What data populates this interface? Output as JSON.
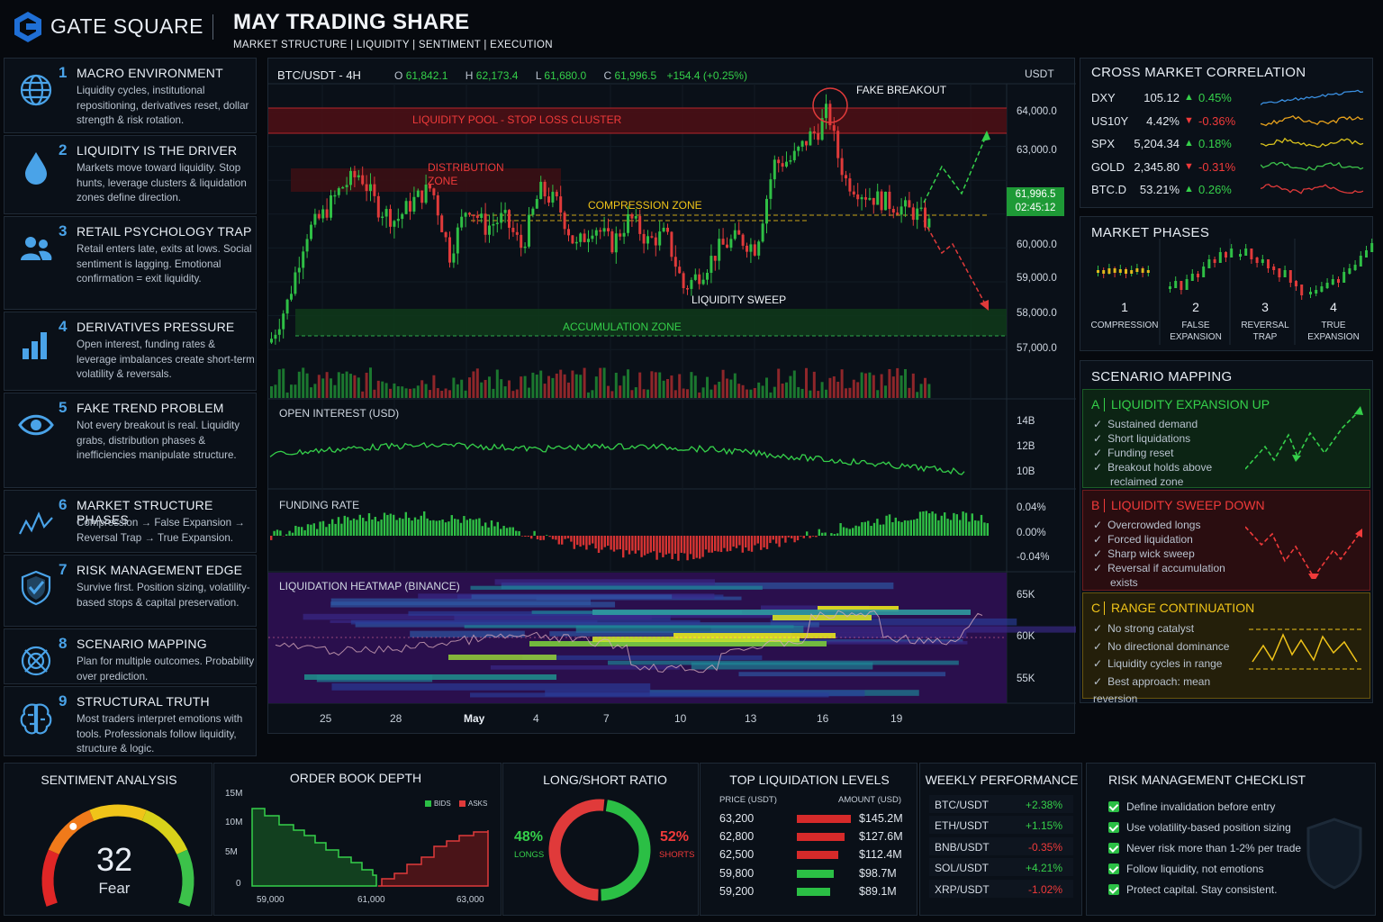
{
  "brand": {
    "name": "GATE SQUARE",
    "title": "MAY TRADING SHARE",
    "tags": "MARKET STRUCTURE | LIQUIDITY | SENTIMENT | EXECUTION"
  },
  "topics": [
    {
      "num": "1",
      "title": "MACRO ENVIRONMENT",
      "desc": "Liquidity cycles, institutional repositioning, derivatives reset, dollar strength & risk rotation.",
      "icon": "globe-icon"
    },
    {
      "num": "2",
      "title": "LIQUIDITY IS THE DRIVER",
      "desc": "Markets move toward liquidity. Stop hunts, leverage clusters & liquidation zones define direction.",
      "icon": "drop-icon"
    },
    {
      "num": "3",
      "title": "RETAIL PSYCHOLOGY TRAP",
      "desc": "Retail enters late, exits at lows. Social sentiment is lagging. Emotional confirmation = exit liquidity.",
      "icon": "people-icon"
    },
    {
      "num": "4",
      "title": "DERIVATIVES PRESSURE",
      "desc": "Open interest, funding rates & leverage imbalances create short-term volatility & reversals.",
      "icon": "bars-icon"
    },
    {
      "num": "5",
      "title": "FAKE TREND PROBLEM",
      "desc": "Not every breakout is real. Liquidity grabs, distribution phases & inefficiencies manipulate structure.",
      "icon": "eye-icon"
    },
    {
      "num": "6",
      "title": "MARKET STRUCTURE PHASES",
      "desc": "Compression → False Expansion → Reversal Trap → True Expansion.",
      "icon": "wave-icon"
    },
    {
      "num": "7",
      "title": "RISK MANAGEMENT EDGE",
      "desc": "Survive first. Position sizing, volatility-based stops & capital preservation.",
      "icon": "shield-icon"
    },
    {
      "num": "8",
      "title": "SCENARIO MAPPING",
      "desc": "Plan for multiple outcomes. Probability over prediction.",
      "icon": "target-icon"
    },
    {
      "num": "9",
      "title": "STRUCTURAL TRUTH",
      "desc": "Most traders interpret emotions with tools. Professionals follow liquidity, structure & logic.",
      "icon": "brain-icon"
    }
  ],
  "chart": {
    "pair": "BTC/USDT - 4H",
    "ohlc": {
      "o_label": "O",
      "o": "61,842.1",
      "h_label": "H",
      "h": "62,173.4",
      "l_label": "L",
      "l": "61,680.0",
      "c_label": "C",
      "c": "61,996.5",
      "chg": "+154.4 (+0.25%)"
    },
    "currency": "USDT",
    "price": "61,996.5",
    "timer": "02:45:12",
    "price_ticks": [
      "64,000.0",
      "63,000.0",
      "60,000.0",
      "59,000.0",
      "58,000.0",
      "57,000.0"
    ],
    "labels": {
      "liquidity_pool": "LIQUIDITY POOL - STOP LOSS CLUSTER",
      "distribution": "DISTRIBUTION",
      "distribution2": "ZONE",
      "compression": "COMPRESSION ZONE",
      "fake_breakout": "FAKE BREAKOUT",
      "sweep": "LIQUIDITY SWEEP",
      "accumulation": "ACCUMULATION ZONE"
    },
    "oi_title": "OPEN INTEREST (USD)",
    "oi_ticks": [
      "14B",
      "12B",
      "10B"
    ],
    "fr_title": "FUNDING RATE",
    "fr_ticks": [
      "0.04%",
      "0.00%",
      "-0.04%"
    ],
    "hm_title": "LIQUIDATION HEATMAP (BINANCE)",
    "hm_ticks": [
      "65K",
      "60K",
      "55K"
    ],
    "dates": [
      "25",
      "28",
      "May",
      "4",
      "7",
      "10",
      "13",
      "16",
      "19"
    ]
  },
  "correlation": {
    "title": "CROSS MARKET CORRELATION",
    "rows": [
      {
        "name": "DXY",
        "value": "105.12",
        "chg": "0.45%",
        "dir": "up",
        "color": "#3a8fe0"
      },
      {
        "name": "US10Y",
        "value": "4.42%",
        "chg": "-0.36%",
        "dir": "down",
        "color": "#e8a21c"
      },
      {
        "name": "SPX",
        "value": "5,204.34",
        "chg": "0.18%",
        "dir": "up",
        "color": "#d9c21c"
      },
      {
        "name": "GOLD",
        "value": "2,345.80",
        "chg": "-0.31%",
        "dir": "down",
        "color": "#3cc24a"
      },
      {
        "name": "BTC.D",
        "value": "53.21%",
        "chg": "0.26%",
        "dir": "up",
        "color": "#e03a3a"
      }
    ]
  },
  "phases": {
    "title": "MARKET PHASES",
    "items": [
      {
        "num": "1",
        "label": "COMPRESSION",
        "label2": ""
      },
      {
        "num": "2",
        "label": "FALSE",
        "label2": "EXPANSION"
      },
      {
        "num": "3",
        "label": "REVERSAL",
        "label2": "TRAP"
      },
      {
        "num": "4",
        "label": "TRUE",
        "label2": "EXPANSION"
      }
    ]
  },
  "scenarios": {
    "title": "SCENARIO MAPPING",
    "items": [
      {
        "letter": "A",
        "title": "LIQUIDITY EXPANSION UP",
        "color": "#35d04a",
        "points": [
          "Sustained demand",
          "Short liquidations",
          "Funding reset",
          "Breakout holds above",
          "reclaimed zone"
        ]
      },
      {
        "letter": "B",
        "title": "LIQUIDITY SWEEP DOWN",
        "color": "#f03a3a",
        "points": [
          "Overcrowded longs",
          "Forced liquidation",
          "Sharp wick sweep",
          "Reversal if accumulation",
          "exists"
        ]
      },
      {
        "letter": "C",
        "title": "RANGE CONTINUATION",
        "color": "#f0c419",
        "points": [
          "No strong catalyst",
          "No directional dominance",
          "Liquidity cycles in range",
          "Best approach: mean reversion"
        ]
      }
    ]
  },
  "sentiment": {
    "title": "SENTIMENT ANALYSIS",
    "value": "32",
    "label": "Fear",
    "level": 0.32
  },
  "orderbook": {
    "title": "ORDER BOOK DEPTH",
    "legend_bids": "BIDS",
    "legend_asks": "ASKS",
    "y_ticks": [
      "15M",
      "10M",
      "5M",
      "0"
    ],
    "x_ticks": [
      "59,000",
      "61,000",
      "63,000"
    ]
  },
  "longshort": {
    "title": "LONG/SHORT RATIO",
    "long_pct": "48%",
    "long_label": "LONGS",
    "short_pct": "52%",
    "short_label": "SHORTS",
    "long_value": 48,
    "short_value": 52
  },
  "liquidations": {
    "title": "TOP LIQUIDATION LEVELS",
    "col_price": "PRICE (USDT)",
    "col_amount": "AMOUNT (USD)",
    "rows": [
      {
        "price": "63,200",
        "amount": "$145.2M",
        "side": "short",
        "value": 145.2
      },
      {
        "price": "62,800",
        "amount": "$127.6M",
        "side": "short",
        "value": 127.6
      },
      {
        "price": "62,500",
        "amount": "$112.4M",
        "side": "short",
        "value": 112.4
      },
      {
        "price": "59,800",
        "amount": "$98.7M",
        "side": "long",
        "value": 98.7
      },
      {
        "price": "59,200",
        "amount": "$89.1M",
        "side": "long",
        "value": 89.1
      }
    ]
  },
  "weekly": {
    "title": "WEEKLY PERFORMANCE",
    "rows": [
      {
        "pair": "BTC/USDT",
        "chg": "+2.38%",
        "dir": "up"
      },
      {
        "pair": "ETH/USDT",
        "chg": "+1.15%",
        "dir": "up"
      },
      {
        "pair": "BNB/USDT",
        "chg": "-0.35%",
        "dir": "down"
      },
      {
        "pair": "SOL/USDT",
        "chg": "+4.21%",
        "dir": "up"
      },
      {
        "pair": "XRP/USDT",
        "chg": "-1.02%",
        "dir": "down"
      }
    ]
  },
  "checklist": {
    "title": "RISK MANAGEMENT CHECKLIST",
    "items": [
      "Define invalidation before entry",
      "Use volatility-based position sizing",
      "Never risk more than 1-2% per trade",
      "Follow liquidity, not emotions",
      "Protect capital. Stay consistent."
    ]
  }
}
